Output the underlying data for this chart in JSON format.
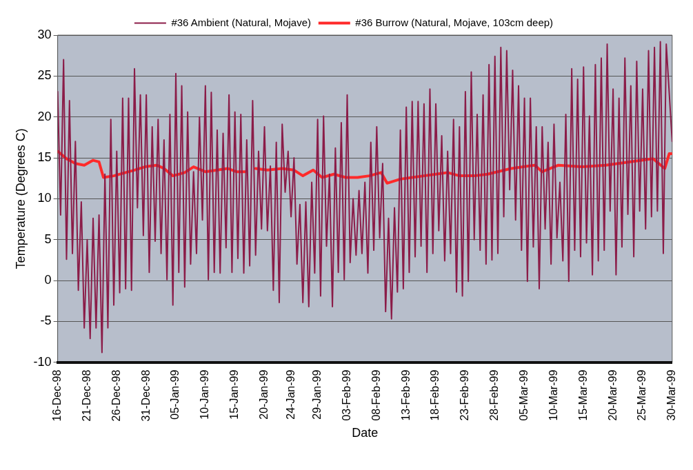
{
  "chart_data": {
    "type": "line",
    "xlabel": "Date",
    "ylabel": "Temperature (Degrees C)",
    "legend": "top",
    "grid": "y",
    "marker": "none",
    "line_style": "solid",
    "xlim": [
      "1998-12-16",
      "1999-03-30"
    ],
    "xticks": [
      {
        "value": "1998-12-16",
        "label": "16-Dec-98"
      },
      {
        "value": "1998-12-21",
        "label": "21-Dec-98"
      },
      {
        "value": "1998-12-26",
        "label": "26-Dec-98"
      },
      {
        "value": "1998-12-31",
        "label": "31-Dec-98"
      },
      {
        "value": "1999-01-05",
        "label": "05-Jan-99"
      },
      {
        "value": "1999-01-10",
        "label": "10-Jan-99"
      },
      {
        "value": "1999-01-15",
        "label": "15-Jan-99"
      },
      {
        "value": "1999-01-20",
        "label": "20-Jan-99"
      },
      {
        "value": "1999-01-24T12:00",
        "label": "24-Jan-99"
      },
      {
        "value": "1999-01-29",
        "label": "29-Jan-99"
      },
      {
        "value": "1999-02-03",
        "label": "03-Feb-99"
      },
      {
        "value": "1999-02-08",
        "label": "08-Feb-99"
      },
      {
        "value": "1999-02-13",
        "label": "13-Feb-99"
      },
      {
        "value": "1999-02-18",
        "label": "18-Feb-99"
      },
      {
        "value": "1999-02-23",
        "label": "23-Feb-99"
      },
      {
        "value": "1999-02-28",
        "label": "28-Feb-99"
      },
      {
        "value": "1999-03-05",
        "label": "05-Mar-99"
      },
      {
        "value": "1999-03-10",
        "label": "10-Mar-99"
      },
      {
        "value": "1999-03-15",
        "label": "15-Mar-99"
      },
      {
        "value": "1999-03-20",
        "label": "20-Mar-99"
      },
      {
        "value": "1999-03-25",
        "label": "25-Mar-99"
      },
      {
        "value": "1999-03-30",
        "label": "30-Mar-99"
      }
    ],
    "ylim": [
      -10,
      30
    ],
    "yticks": [
      -10,
      -5,
      0,
      5,
      10,
      15,
      20,
      25,
      30
    ],
    "series": [
      {
        "name": "#36 Ambient (Natural, Mojave)",
        "color": "#8b1c48",
        "x": [
          "1998-12-16",
          "1998-12-16T12:00",
          "1998-12-17",
          "1998-12-17T12:00",
          "1998-12-18",
          "1998-12-18T12:00",
          "1998-12-19",
          "1998-12-19T12:00",
          "1998-12-20",
          "1998-12-20T12:00",
          "1998-12-21",
          "1998-12-21T12:00",
          "1998-12-22",
          "1998-12-22T12:00",
          "1998-12-23",
          "1998-12-23T12:00",
          "1998-12-24",
          "1998-12-24T12:00",
          "1998-12-25",
          "1998-12-25T12:00",
          "1998-12-26",
          "1998-12-26T12:00",
          "1998-12-27",
          "1998-12-27T12:00",
          "1998-12-28",
          "1998-12-28T12:00",
          "1998-12-29",
          "1998-12-29T12:00",
          "1998-12-30",
          "1998-12-30T12:00",
          "1998-12-31",
          "1998-12-31T12:00",
          "1999-01-01",
          "1999-01-01T12:00",
          "1999-01-02",
          "1999-01-02T12:00",
          "1999-01-03",
          "1999-01-03T12:00",
          "1999-01-04",
          "1999-01-04T12:00",
          "1999-01-05",
          "1999-01-05T12:00",
          "1999-01-06",
          "1999-01-06T12:00",
          "1999-01-07",
          "1999-01-07T12:00",
          "1999-01-08",
          "1999-01-08T12:00",
          "1999-01-09",
          "1999-01-09T12:00",
          "1999-01-10",
          "1999-01-10T12:00",
          "1999-01-11",
          "1999-01-11T12:00",
          "1999-01-12",
          "1999-01-12T12:00",
          "1999-01-13",
          "1999-01-13T12:00",
          "1999-01-14",
          "1999-01-14T12:00",
          "1999-01-15",
          "1999-01-15T12:00",
          "1999-01-16",
          "1999-01-16T12:00",
          "1999-01-17",
          "1999-01-17T12:00",
          "1999-01-18",
          "1999-01-18T12:00",
          "1999-01-19",
          "1999-01-19T12:00",
          "1999-01-20",
          "1999-01-20T12:00",
          "1999-01-21",
          "1999-01-21T12:00",
          "1999-01-22",
          "1999-01-22T12:00",
          "1999-01-23",
          "1999-01-23T12:00",
          "1999-01-24",
          "1999-01-24T12:00",
          "1999-01-25",
          "1999-01-25T12:00",
          "1999-01-26",
          "1999-01-26T12:00",
          "1999-01-27",
          "1999-01-27T12:00",
          "1999-01-28",
          "1999-01-28T12:00",
          "1999-01-29",
          "1999-01-29T12:00",
          "1999-01-30",
          "1999-01-30T12:00",
          "1999-01-31",
          "1999-01-31T12:00",
          "1999-02-01",
          "1999-02-01T12:00",
          "1999-02-02",
          "1999-02-02T12:00",
          "1999-02-03",
          "1999-02-03T12:00",
          "1999-02-04",
          "1999-02-04T12:00",
          "1999-02-05",
          "1999-02-05T12:00",
          "1999-02-06",
          "1999-02-06T12:00",
          "1999-02-07",
          "1999-02-07T12:00",
          "1999-02-08",
          "1999-02-08T12:00",
          "1999-02-09",
          "1999-02-09T12:00",
          "1999-02-10",
          "1999-02-10T12:00",
          "1999-02-11",
          "1999-02-11T12:00",
          "1999-02-12",
          "1999-02-12T12:00",
          "1999-02-13",
          "1999-02-13T12:00",
          "1999-02-14",
          "1999-02-14T12:00",
          "1999-02-15",
          "1999-02-15T12:00",
          "1999-02-16",
          "1999-02-16T12:00",
          "1999-02-17",
          "1999-02-17T12:00",
          "1999-02-18",
          "1999-02-18T12:00",
          "1999-02-19",
          "1999-02-19T12:00",
          "1999-02-20",
          "1999-02-20T12:00",
          "1999-02-21",
          "1999-02-21T12:00",
          "1999-02-22",
          "1999-02-22T12:00",
          "1999-02-23",
          "1999-02-23T12:00",
          "1999-02-24",
          "1999-02-24T12:00",
          "1999-02-25",
          "1999-02-25T12:00",
          "1999-02-26",
          "1999-02-26T12:00",
          "1999-02-27",
          "1999-02-27T12:00",
          "1999-02-28",
          "1999-02-28T12:00",
          "1999-03-01",
          "1999-03-01T12:00",
          "1999-03-02",
          "1999-03-02T12:00",
          "1999-03-03",
          "1999-03-03T12:00",
          "1999-03-04",
          "1999-03-04T12:00",
          "1999-03-05",
          "1999-03-05T12:00",
          "1999-03-06",
          "1999-03-06T12:00",
          "1999-03-07",
          "1999-03-07T12:00",
          "1999-03-08",
          "1999-03-08T12:00",
          "1999-03-09",
          "1999-03-09T12:00",
          "1999-03-10",
          "1999-03-10T12:00",
          "1999-03-11",
          "1999-03-11T12:00",
          "1999-03-12",
          "1999-03-12T12:00",
          "1999-03-13",
          "1999-03-13T12:00",
          "1999-03-14",
          "1999-03-14T12:00",
          "1999-03-15",
          "1999-03-15T12:00",
          "1999-03-16",
          "1999-03-16T12:00",
          "1999-03-17",
          "1999-03-17T12:00",
          "1999-03-18",
          "1999-03-18T12:00",
          "1999-03-19",
          "1999-03-19T12:00",
          "1999-03-20",
          "1999-03-20T12:00",
          "1999-03-21",
          "1999-03-21T12:00",
          "1999-03-22",
          "1999-03-22T12:00",
          "1999-03-23",
          "1999-03-23T12:00",
          "1999-03-24",
          "1999-03-24T12:00",
          "1999-03-25",
          "1999-03-25T12:00",
          "1999-03-26",
          "1999-03-26T12:00",
          "1999-03-27",
          "1999-03-27T12:00",
          "1999-03-28",
          "1999-03-28T12:00",
          "1999-03-29",
          "1999-03-30"
        ],
        "values": [
          23.1,
          8,
          27,
          2.6,
          22,
          3.3,
          17,
          -1.2,
          9.6,
          -5.8,
          5,
          -7.1,
          7.6,
          -5.8,
          8,
          -8.8,
          13,
          -5.8,
          19.7,
          -3,
          15.8,
          -1.5,
          22.3,
          -1,
          22.3,
          -1.2,
          25.9,
          8.9,
          22.7,
          5.5,
          22.7,
          1,
          18.8,
          4.8,
          19.7,
          3.3,
          17.2,
          0.1,
          20.3,
          -3,
          25.3,
          1,
          23.8,
          -0.8,
          20.6,
          2,
          13.3,
          3.3,
          20,
          7.4,
          23.8,
          0.1,
          23,
          1,
          18.4,
          0.9,
          18,
          4,
          22.7,
          1,
          20.6,
          2.7,
          20.3,
          0.9,
          17.2,
          1.8,
          22,
          3.1,
          15.8,
          6.3,
          18.8,
          6.1,
          14,
          -1.2,
          16.9,
          -2.7,
          19.1,
          10.8,
          15.8,
          7.8,
          15,
          2,
          9.3,
          -2.7,
          9.6,
          -3.2,
          12,
          0.9,
          19.7,
          -1.9,
          20.1,
          4.2,
          13,
          -3.2,
          16.2,
          1,
          19.3,
          0.1,
          22.7,
          2.2,
          10,
          3.1,
          11,
          3.3,
          12,
          0.9,
          16.9,
          3.7,
          18.8,
          5.2,
          14.3,
          -3.8,
          7.6,
          -4.7,
          8.9,
          -1.4,
          18.4,
          -1,
          21.2,
          1,
          21.9,
          2.9,
          21.9,
          4.2,
          21.6,
          1,
          23.4,
          3.3,
          21.6,
          6.1,
          17.7,
          2.4,
          15.8,
          3.3,
          19.7,
          -1.4,
          18.8,
          -1.9,
          23.1,
          -0.1,
          25.5,
          5,
          20.3,
          3.7,
          22.7,
          2,
          26.4,
          2.5,
          27.4,
          3.3,
          28.5,
          7.8,
          28.1,
          11.1,
          25.7,
          7.4,
          23.8,
          3.7,
          22.3,
          -0.1,
          22.3,
          4.1,
          18.8,
          -1,
          18.8,
          6.3,
          16.9,
          2,
          19.1,
          5.2,
          12,
          2.4,
          20.3,
          -0.1,
          25.9,
          3.7,
          24.6,
          2.9,
          26.1,
          4.6,
          20.1,
          0.7,
          26.4,
          2.4,
          27.2,
          3.7,
          28.9,
          8.5,
          23.4,
          0.7,
          22.3,
          4.1,
          27.2,
          8.1,
          23.8,
          2.9,
          26.8,
          8.5,
          23.4,
          6.3,
          28.1,
          7.8,
          28.5,
          8.5,
          29.2,
          3.3,
          28.9,
          17
        ]
      },
      {
        "name": "#36 Burrow (Natural, Mojave, 103cm deep)",
        "color": "#ff2a2a",
        "x": [
          "1998-12-16",
          "1998-12-16T12:00",
          "1998-12-17T12:00",
          "1998-12-19",
          "1998-12-20T12:00",
          "1998-12-22",
          "1998-12-23",
          "1998-12-23T18:00",
          "1998-12-25T12:00",
          "1998-12-27T12:00",
          "1998-12-29",
          "1998-12-30T18:00",
          "1999-01-01T18:00",
          "1999-01-03",
          "1999-01-04T12:00",
          "1999-01-06T12:00",
          "1999-01-08",
          "1999-01-10",
          "1999-01-12",
          "1999-01-13T18:00",
          "1999-01-15T06:00",
          "1999-01-16T18:00",
          "1999-01-17T18:00",
          "1999-01-18T12:00",
          "1999-01-20T12:00",
          "1999-01-23",
          "1999-01-25",
          "1999-01-26T12:00",
          "1999-01-28T06:00",
          "1999-01-29T18:00",
          "1999-01-31T18:00",
          "1999-02-02T18:00",
          "1999-02-04T18:00",
          "1999-02-06T18:00",
          "1999-02-08T18:00",
          "1999-02-09T18:00",
          "1999-02-12",
          "1999-02-14",
          "1999-02-16",
          "1999-02-18",
          "1999-02-20",
          "1999-02-22",
          "1999-02-24T12:00",
          "1999-02-26T18:00",
          "1999-03-02T18:00",
          "1999-03-06T18:00",
          "1999-03-08",
          "1999-03-10T18:00",
          "1999-03-14T18:00",
          "1999-03-18T18:00",
          "1999-03-22T18:00",
          "1999-03-26T18:00",
          "1999-03-28T18:00",
          "1999-03-29T12:00",
          "1999-03-30"
        ],
        "values": [
          15.8,
          15.5,
          14.9,
          14.3,
          14.1,
          14.7,
          14.5,
          12.6,
          12.8,
          13.2,
          13.5,
          13.9,
          14.1,
          13.7,
          12.8,
          13.2,
          13.9,
          13.3,
          13.5,
          13.7,
          13.3,
          13.3,
          null,
          13.7,
          13.5,
          13.7,
          13.5,
          12.8,
          13.5,
          12.6,
          13,
          12.6,
          12.6,
          12.8,
          13.2,
          11.9,
          12.4,
          12.6,
          12.8,
          13,
          13.2,
          12.8,
          12.8,
          13,
          13.7,
          14.1,
          13.3,
          14.1,
          13.9,
          14.1,
          14.5,
          14.9,
          13.7,
          15.5,
          15.5
        ]
      }
    ]
  }
}
